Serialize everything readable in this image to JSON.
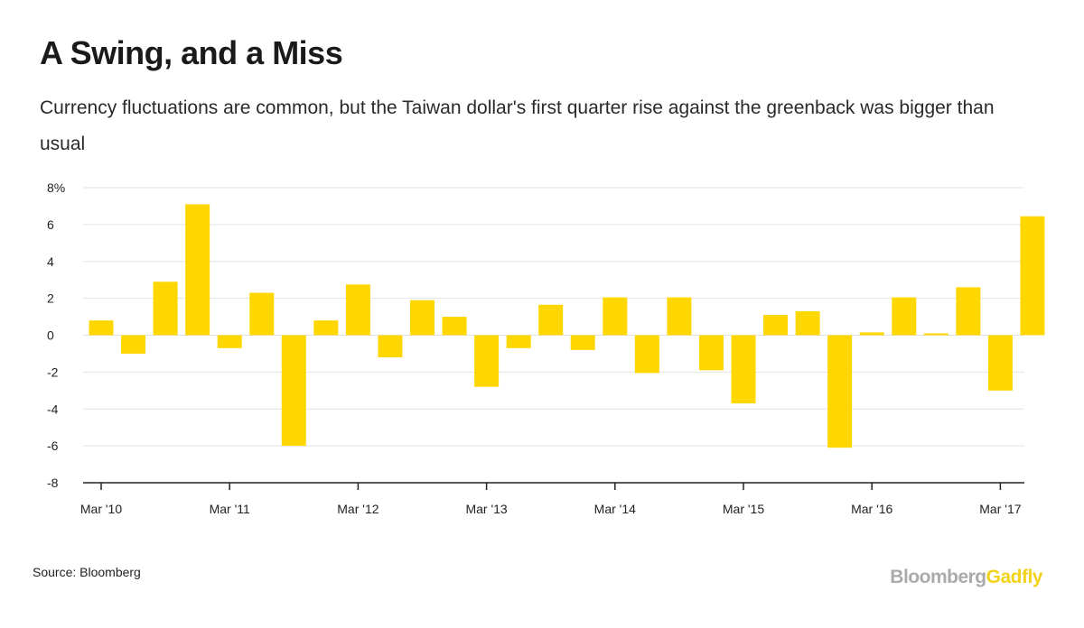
{
  "header": {
    "title": "A Swing, and a Miss",
    "subtitle": "Currency fluctuations are common, but the Taiwan dollar's first quarter rise against the greenback was bigger than usual"
  },
  "footer": {
    "source": "Source: Bloomberg",
    "brand_part1": "Bloomberg",
    "brand_part2": "Gadfly"
  },
  "colors": {
    "bar": "#FFD700",
    "grid": "#e2e2e2",
    "axis": "#222222"
  },
  "chart_data": {
    "type": "bar",
    "xlabel": "",
    "ylabel": "",
    "ylim": [
      -8,
      8
    ],
    "yticks": [
      {
        "value": 8,
        "label": "8%"
      },
      {
        "value": 6,
        "label": "6"
      },
      {
        "value": 4,
        "label": "4"
      },
      {
        "value": 2,
        "label": "2"
      },
      {
        "value": 0,
        "label": "0"
      },
      {
        "value": -2,
        "label": "-2"
      },
      {
        "value": -4,
        "label": "-4"
      },
      {
        "value": -6,
        "label": "-6"
      },
      {
        "value": -8,
        "label": "-8"
      }
    ],
    "xticks": [
      {
        "index": 0,
        "label": "Mar '10"
      },
      {
        "index": 4,
        "label": "Mar '11"
      },
      {
        "index": 8,
        "label": "Mar '12"
      },
      {
        "index": 12,
        "label": "Mar '13"
      },
      {
        "index": 16,
        "label": "Mar '14"
      },
      {
        "index": 20,
        "label": "Mar '15"
      },
      {
        "index": 24,
        "label": "Mar '16"
      },
      {
        "index": 28,
        "label": "Mar '17"
      }
    ],
    "grid": true,
    "values": [
      0.8,
      -1.0,
      2.9,
      7.1,
      -0.7,
      2.3,
      -6.0,
      0.8,
      2.75,
      -1.2,
      1.9,
      1.0,
      -2.8,
      -0.7,
      1.65,
      -0.8,
      2.05,
      -2.05,
      2.05,
      -1.9,
      -3.7,
      1.1,
      1.3,
      -6.1,
      0.15,
      2.05,
      0.1,
      2.6,
      -3.0,
      6.45
    ]
  }
}
